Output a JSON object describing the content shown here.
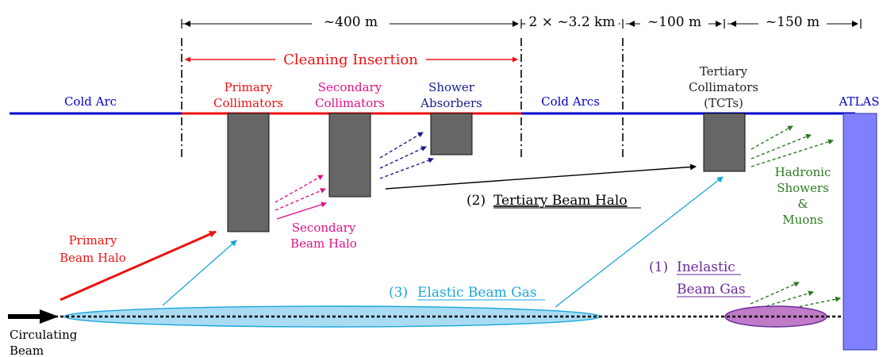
{
  "dimensions": {
    "d1": "~400 m",
    "d2": "2 × ~3.2 km",
    "d3": "~100 m",
    "d4": "~150 m"
  },
  "cleaning_insertion": "Cleaning Insertion",
  "beamline": {
    "cold_arc": "Cold Arc",
    "cold_arcs": "Cold Arcs",
    "atlas": "ATLAS"
  },
  "collimators": {
    "primary": [
      "Primary",
      "Collimators"
    ],
    "secondary": [
      "Secondary",
      "Collimators"
    ],
    "absorbers": [
      "Shower",
      "Absorbers"
    ],
    "tertiary": [
      "Tertiary",
      "Collimators",
      "(TCTs)"
    ]
  },
  "halo": {
    "primary": [
      "Primary",
      "Beam Halo"
    ],
    "secondary": [
      "Secondary",
      "Beam Halo"
    ],
    "tertiary_num": "(2)",
    "tertiary": "Tertiary Beam Halo"
  },
  "gas": {
    "elastic_num": "(3)",
    "elastic": "Elastic Beam Gas",
    "inelastic_num": "(1)",
    "inelastic": [
      "Inelastic",
      "Beam Gas"
    ]
  },
  "showers": [
    "Hadronic",
    "Showers",
    "&",
    "Muons"
  ],
  "beam": [
    "Circulating",
    "Beam"
  ],
  "colors": {
    "cold": "#0000cc",
    "cleaning": "#ee1111",
    "secondary": "#e0108a",
    "absorber": "#1a1a8c",
    "block": "#666666",
    "showers": "#2a7a1e",
    "elastic": "#1aa6dc",
    "inelastic": "#6a2a9a",
    "atlas": "#8080ff"
  }
}
